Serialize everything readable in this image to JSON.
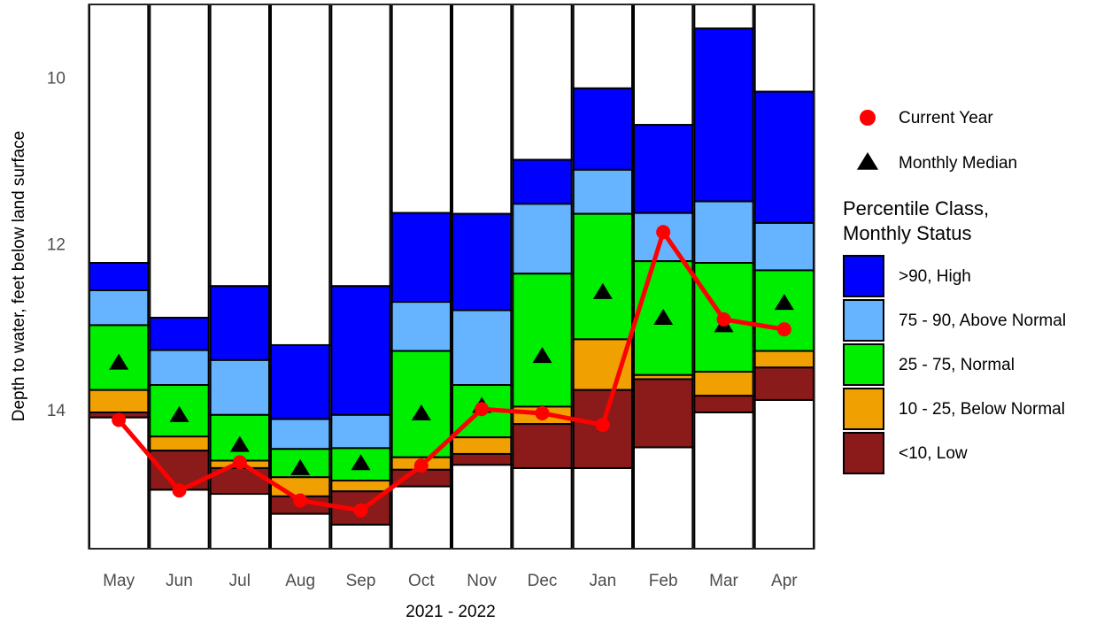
{
  "chart_data": {
    "type": "floating_stacked_bar",
    "y_label": "Depth to water, feet below land surface",
    "x_label": "2021 - 2022",
    "categories": [
      "May",
      "Jun",
      "Jul",
      "Aug",
      "Sep",
      "Oct",
      "Nov",
      "Dec",
      "Jan",
      "Feb",
      "Mar",
      "Apr"
    ],
    "ylim": [
      9.1,
      15.65
    ],
    "y_inverted": true,
    "yticks": [
      10,
      12,
      14
    ],
    "grid": false,
    "legend_title": [
      "Percentile Class,",
      "Monthly Status"
    ],
    "series": [
      {
        "name": ">90, High",
        "color": "#0000ff",
        "values": [
          [
            12.21,
            12.54
          ],
          [
            12.87,
            13.26
          ],
          [
            12.49,
            13.38
          ],
          [
            13.2,
            14.09
          ],
          [
            12.49,
            14.04
          ],
          [
            11.61,
            12.68
          ],
          [
            11.62,
            12.78
          ],
          [
            10.97,
            11.5
          ],
          [
            10.11,
            11.09
          ],
          [
            10.55,
            11.61
          ],
          [
            9.39,
            11.47
          ],
          [
            10.15,
            11.73
          ]
        ]
      },
      {
        "name": "75 - 90, Above Normal",
        "color": "#66b3ff",
        "values": [
          [
            12.54,
            12.96
          ],
          [
            13.26,
            13.68
          ],
          [
            13.38,
            14.04
          ],
          [
            14.09,
            14.45
          ],
          [
            14.04,
            14.44
          ],
          [
            12.68,
            13.27
          ],
          [
            12.78,
            13.68
          ],
          [
            11.5,
            12.34
          ],
          [
            11.09,
            11.62
          ],
          [
            11.61,
            12.19
          ],
          [
            11.47,
            12.21
          ],
          [
            11.73,
            12.3
          ]
        ]
      },
      {
        "name": "25 - 75, Normal",
        "color": "#00ee00",
        "values": [
          [
            12.96,
            13.74
          ],
          [
            13.68,
            14.3
          ],
          [
            14.04,
            14.59
          ],
          [
            14.45,
            14.79
          ],
          [
            14.44,
            14.83
          ],
          [
            13.27,
            14.55
          ],
          [
            13.68,
            14.31
          ],
          [
            12.34,
            13.94
          ],
          [
            11.62,
            13.13
          ],
          [
            12.19,
            13.56
          ],
          [
            12.21,
            13.52
          ],
          [
            12.3,
            13.27
          ]
        ]
      },
      {
        "name": "10 - 25, Below Normal",
        "color": "#f0a000",
        "values": [
          [
            13.74,
            14.01
          ],
          [
            14.3,
            14.47
          ],
          [
            14.59,
            14.68
          ],
          [
            14.79,
            15.02
          ],
          [
            14.83,
            14.96
          ],
          [
            14.55,
            14.7
          ],
          [
            14.31,
            14.51
          ],
          [
            13.94,
            14.15
          ],
          [
            13.13,
            13.74
          ],
          [
            13.56,
            13.61
          ],
          [
            13.52,
            13.81
          ],
          [
            13.27,
            13.47
          ]
        ]
      },
      {
        "name": "<10, Low",
        "color": "#8b1a1a",
        "values": [
          [
            14.01,
            14.07
          ],
          [
            14.47,
            14.94
          ],
          [
            14.68,
            14.99
          ],
          [
            15.02,
            15.23
          ],
          [
            14.96,
            15.36
          ],
          [
            14.7,
            14.9
          ],
          [
            14.51,
            14.64
          ],
          [
            14.15,
            14.68
          ],
          [
            13.74,
            14.68
          ],
          [
            13.61,
            14.43
          ],
          [
            13.81,
            14.01
          ],
          [
            13.47,
            13.86
          ]
        ]
      }
    ],
    "current_year": {
      "name": "Current Year",
      "color": "#ff0000",
      "values": [
        14.1,
        14.95,
        14.61,
        15.07,
        15.19,
        14.65,
        13.97,
        14.02,
        14.16,
        11.84,
        12.89,
        13.01
      ]
    },
    "median": {
      "name": "Monthly Median",
      "color": "#000000",
      "values": [
        13.41,
        14.04,
        14.4,
        14.68,
        14.62,
        14.02,
        13.93,
        13.33,
        12.56,
        12.87,
        12.96,
        12.69
      ]
    }
  }
}
